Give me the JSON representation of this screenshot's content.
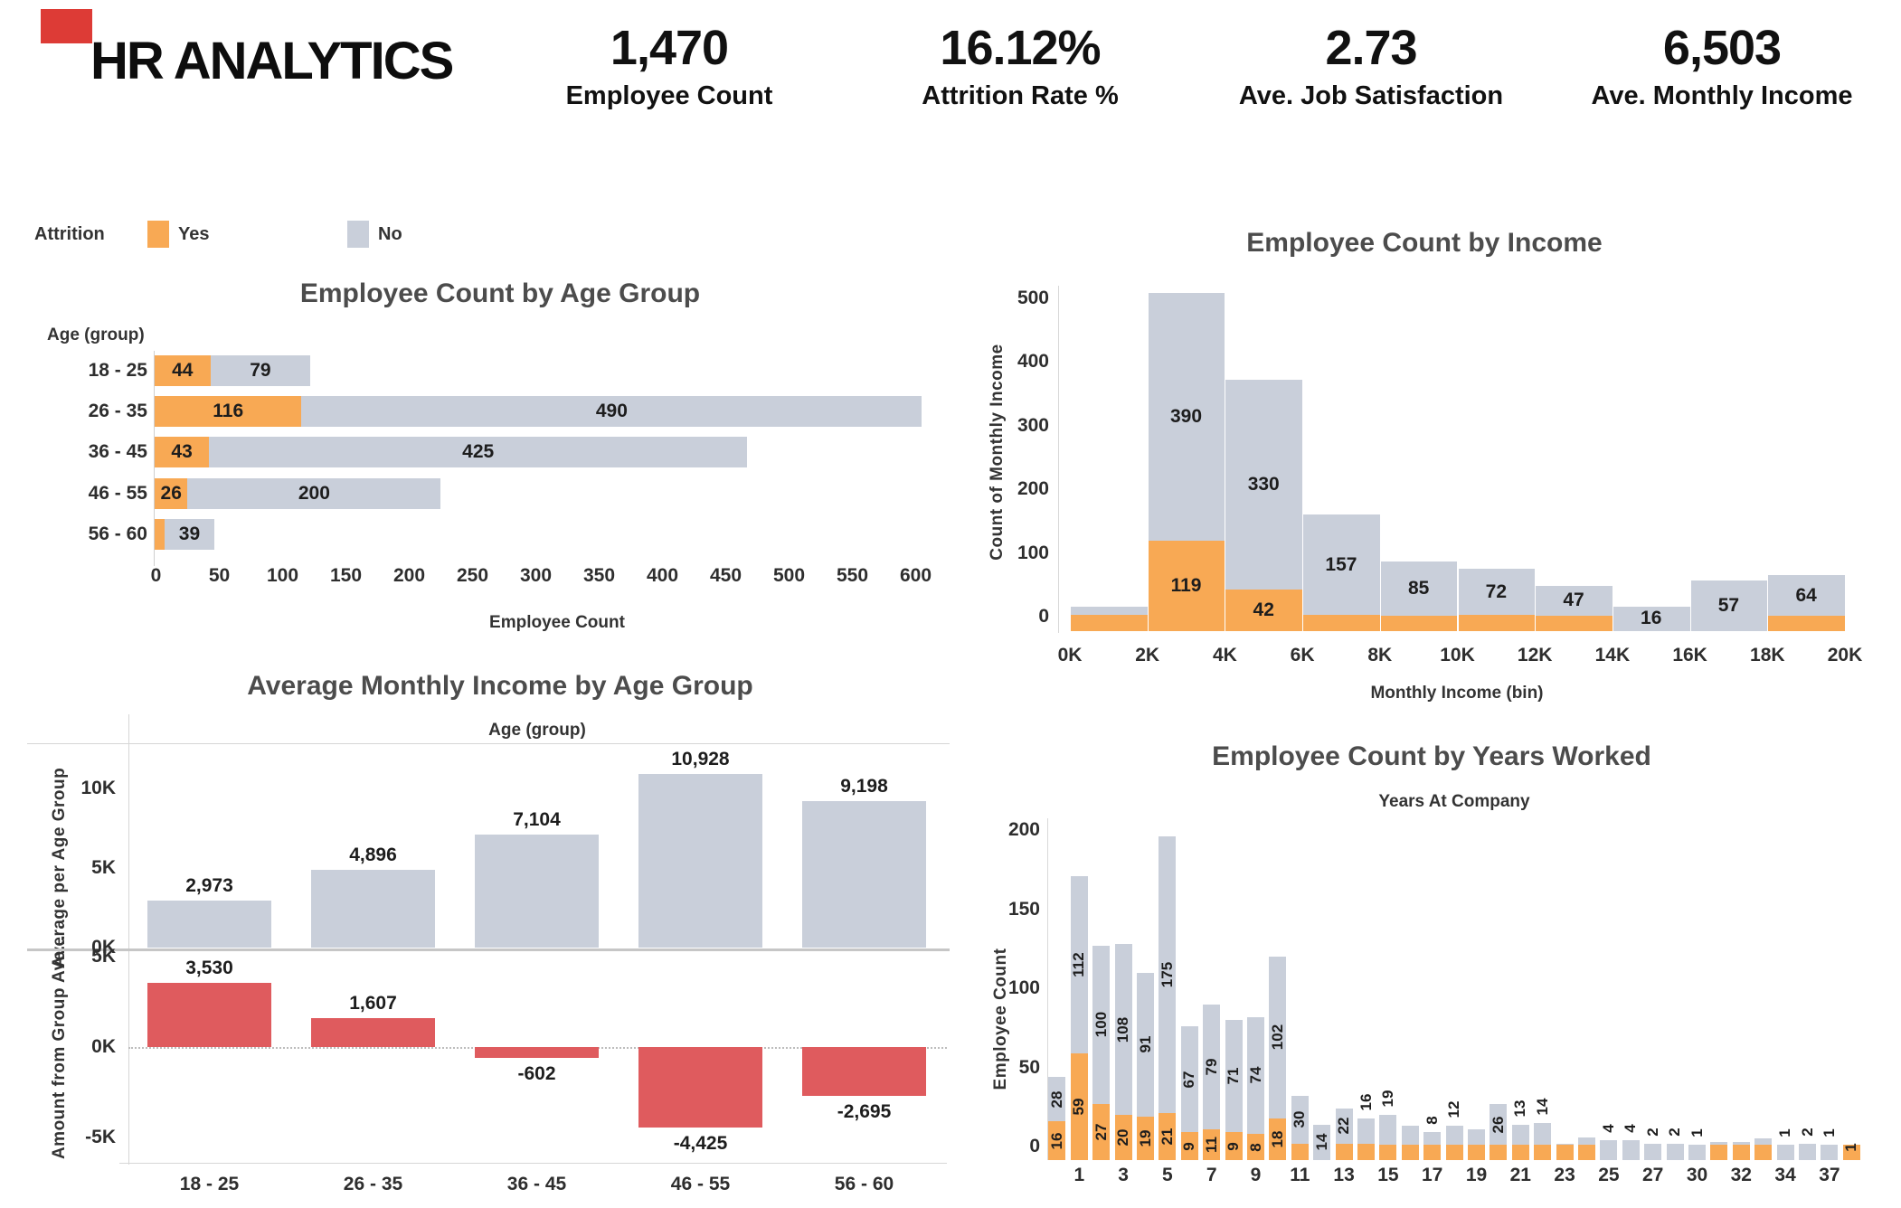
{
  "header": {
    "title": "HR ANALYTICS",
    "accent_color": "#DD3B36",
    "kpis": [
      {
        "value": "1,470",
        "label": "Employee Count"
      },
      {
        "value": "16.12%",
        "label": "Attrition Rate %"
      },
      {
        "value": "2.73",
        "label": "Ave. Job Satisfaction"
      },
      {
        "value": "6,503",
        "label": "Ave. Monthly Income"
      }
    ]
  },
  "legend": {
    "title": "Attrition",
    "items": [
      {
        "label": "Yes",
        "color": "#F8A954"
      },
      {
        "label": "No",
        "color": "#C9CFDA"
      }
    ]
  },
  "colors": {
    "yes": "#F8A954",
    "no": "#C9CFDA",
    "negative_red": "#DF5B5E",
    "axis_line": "#d6d6d6"
  },
  "chart_data": [
    {
      "id": "employee_count_by_age_group",
      "type": "bar",
      "orientation": "horizontal",
      "stacked": true,
      "title": "Employee Count by Age Group",
      "row_axis_title": "Age (group)",
      "xlabel": "Employee Count",
      "categories": [
        "18 - 25",
        "26 - 35",
        "36 - 45",
        "46 - 55",
        "56 - 60"
      ],
      "series": [
        {
          "name": "Yes",
          "values": [
            44,
            116,
            43,
            26,
            8
          ],
          "labels": [
            "44",
            "116",
            "43",
            "26",
            ""
          ]
        },
        {
          "name": "No",
          "values": [
            79,
            490,
            425,
            200,
            39
          ],
          "labels": [
            "79",
            "490",
            "425",
            "200",
            "39"
          ]
        }
      ],
      "xticks": [
        "0",
        "50",
        "100",
        "150",
        "200",
        "250",
        "300",
        "350",
        "400",
        "450",
        "500",
        "550",
        "600"
      ],
      "xlim": [
        0,
        640
      ]
    },
    {
      "id": "employee_count_by_income",
      "type": "bar",
      "stacked": true,
      "title": "Employee Count by Income",
      "ylabel": "Count of Monthly Income",
      "xlabel": "Monthly Income (bin)",
      "bin_edges": [
        "0K",
        "2K",
        "4K",
        "6K",
        "8K",
        "10K",
        "12K",
        "14K",
        "16K",
        "18K",
        "20K"
      ],
      "series": [
        {
          "name": "Yes",
          "values": [
            3,
            119,
            42,
            3,
            2,
            3,
            2,
            0,
            0,
            1
          ],
          "labels": [
            "",
            "119",
            "42",
            "",
            "",
            "",
            "",
            "",
            "",
            ""
          ]
        },
        {
          "name": "No",
          "values": [
            12,
            390,
            330,
            157,
            85,
            72,
            47,
            16,
            57,
            64
          ],
          "labels": [
            "",
            "390",
            "330",
            "157",
            "85",
            "72",
            "47",
            "16",
            "57",
            "64"
          ]
        }
      ],
      "yticks": [
        "0",
        "100",
        "200",
        "300",
        "400",
        "500"
      ],
      "ylim": [
        0,
        540
      ]
    },
    {
      "id": "average_monthly_income_by_age_group",
      "type": "bar",
      "title": "Average Monthly Income by Age Group",
      "column_axis_title": "Age (group)",
      "categories": [
        "18 - 25",
        "26 - 35",
        "36 - 45",
        "46 - 55",
        "56 - 60"
      ],
      "panels": [
        {
          "ylabel": "Average per Age Group",
          "yticks": [
            "0K",
            "5K",
            "10K"
          ],
          "values": [
            2973,
            4896,
            7104,
            10928,
            9198
          ],
          "labels": [
            "2,973",
            "4,896",
            "7,104",
            "10,928",
            "9,198"
          ]
        },
        {
          "ylabel": "Amount from Group Ave...",
          "yticks": [
            "5K",
            "0K",
            "-5K"
          ],
          "values": [
            3530,
            1607,
            -602,
            -4425,
            -2695
          ],
          "labels": [
            "3,530",
            "1,607",
            "-602",
            "-4,425",
            "-2,695"
          ]
        }
      ]
    },
    {
      "id": "employee_count_by_years_worked",
      "type": "bar",
      "stacked": true,
      "title": "Employee Count by Years Worked",
      "subtitle": "Years At Company",
      "ylabel": "Employee Count",
      "yticks": [
        "0",
        "50",
        "100",
        "150",
        "200"
      ],
      "categories": [
        "0",
        "1",
        "2",
        "3",
        "4",
        "5",
        "6",
        "7",
        "8",
        "9",
        "10",
        "11",
        "12",
        "13",
        "14",
        "15",
        "16",
        "17",
        "18",
        "19",
        "20",
        "21",
        "22",
        "23",
        "24",
        "25",
        "26",
        "27",
        "29",
        "30",
        "31",
        "32",
        "33",
        "34",
        "36",
        "37",
        "40"
      ],
      "xtick_indexes": [
        1,
        3,
        5,
        7,
        9,
        11,
        13,
        15,
        17,
        19,
        21,
        23,
        25,
        27,
        29,
        31,
        33,
        35
      ],
      "series": [
        {
          "name": "Yes",
          "values": [
            16,
            59,
            27,
            20,
            19,
            21,
            9,
            11,
            9,
            8,
            18,
            2,
            0,
            2,
            2,
            1,
            1,
            1,
            1,
            1,
            1,
            1,
            1,
            1,
            1,
            0,
            0,
            0,
            0,
            0,
            1,
            1,
            1,
            0,
            0,
            0,
            1
          ],
          "labels": [
            "16",
            "59",
            "27",
            "20",
            "19",
            "21",
            "9",
            "11",
            "9",
            "8",
            "18",
            "",
            "",
            "",
            "",
            "",
            "",
            "",
            "",
            "",
            "",
            "",
            "",
            "",
            "",
            "",
            "",
            "",
            "",
            "",
            "",
            "",
            "",
            "",
            "",
            "",
            "1"
          ]
        },
        {
          "name": "No",
          "values": [
            28,
            112,
            100,
            108,
            91,
            175,
            67,
            79,
            71,
            74,
            102,
            30,
            14,
            22,
            16,
            19,
            12,
            8,
            12,
            10,
            26,
            13,
            14,
            1,
            5,
            4,
            4,
            2,
            2,
            1,
            2,
            2,
            4,
            1,
            2,
            1,
            0
          ],
          "labels": [
            "28",
            "112",
            "100",
            "108",
            "91",
            "175",
            "67",
            "79",
            "71",
            "74",
            "102",
            "30",
            "14",
            "22",
            "16",
            "19",
            "",
            "8",
            "12",
            "",
            "26",
            "13",
            "14",
            "",
            "",
            "4",
            "4",
            "2",
            "2",
            "1",
            "",
            "",
            "",
            "1",
            "2",
            "1",
            ""
          ]
        }
      ]
    }
  ]
}
